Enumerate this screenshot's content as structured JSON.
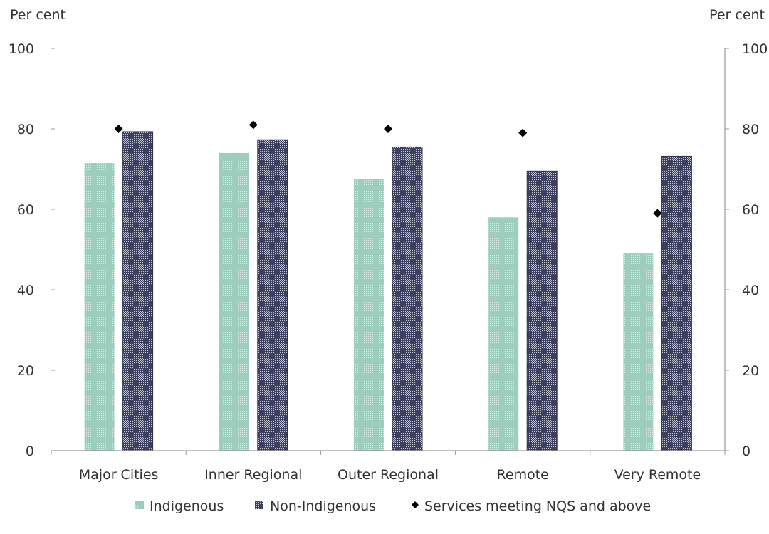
{
  "chart_data": {
    "type": "bar",
    "y_left_label": "Per cent",
    "y_right_label": "Per cent",
    "ylim": [
      0,
      100
    ],
    "yticks": [
      "0",
      "20",
      "40",
      "60",
      "80",
      "100"
    ],
    "categories": [
      "Major Cities",
      "Inner Regional",
      "Outer Regional",
      "Remote",
      "Very Remote"
    ],
    "series": [
      {
        "name": "Indigenous",
        "kind": "bar",
        "color": "#9cccbb",
        "values": [
          71.5,
          74,
          67.5,
          58,
          49
        ]
      },
      {
        "name": "Non-Indigenous",
        "kind": "bar",
        "color": "#3c3f5e",
        "values": [
          79.3,
          77.3,
          75.5,
          69.5,
          73.2
        ]
      },
      {
        "name": "Services meeting NQS and above",
        "kind": "marker",
        "color": "#000000",
        "values": [
          80,
          81,
          80,
          79,
          59
        ]
      }
    ],
    "legend_position": "bottom",
    "grid": false
  }
}
